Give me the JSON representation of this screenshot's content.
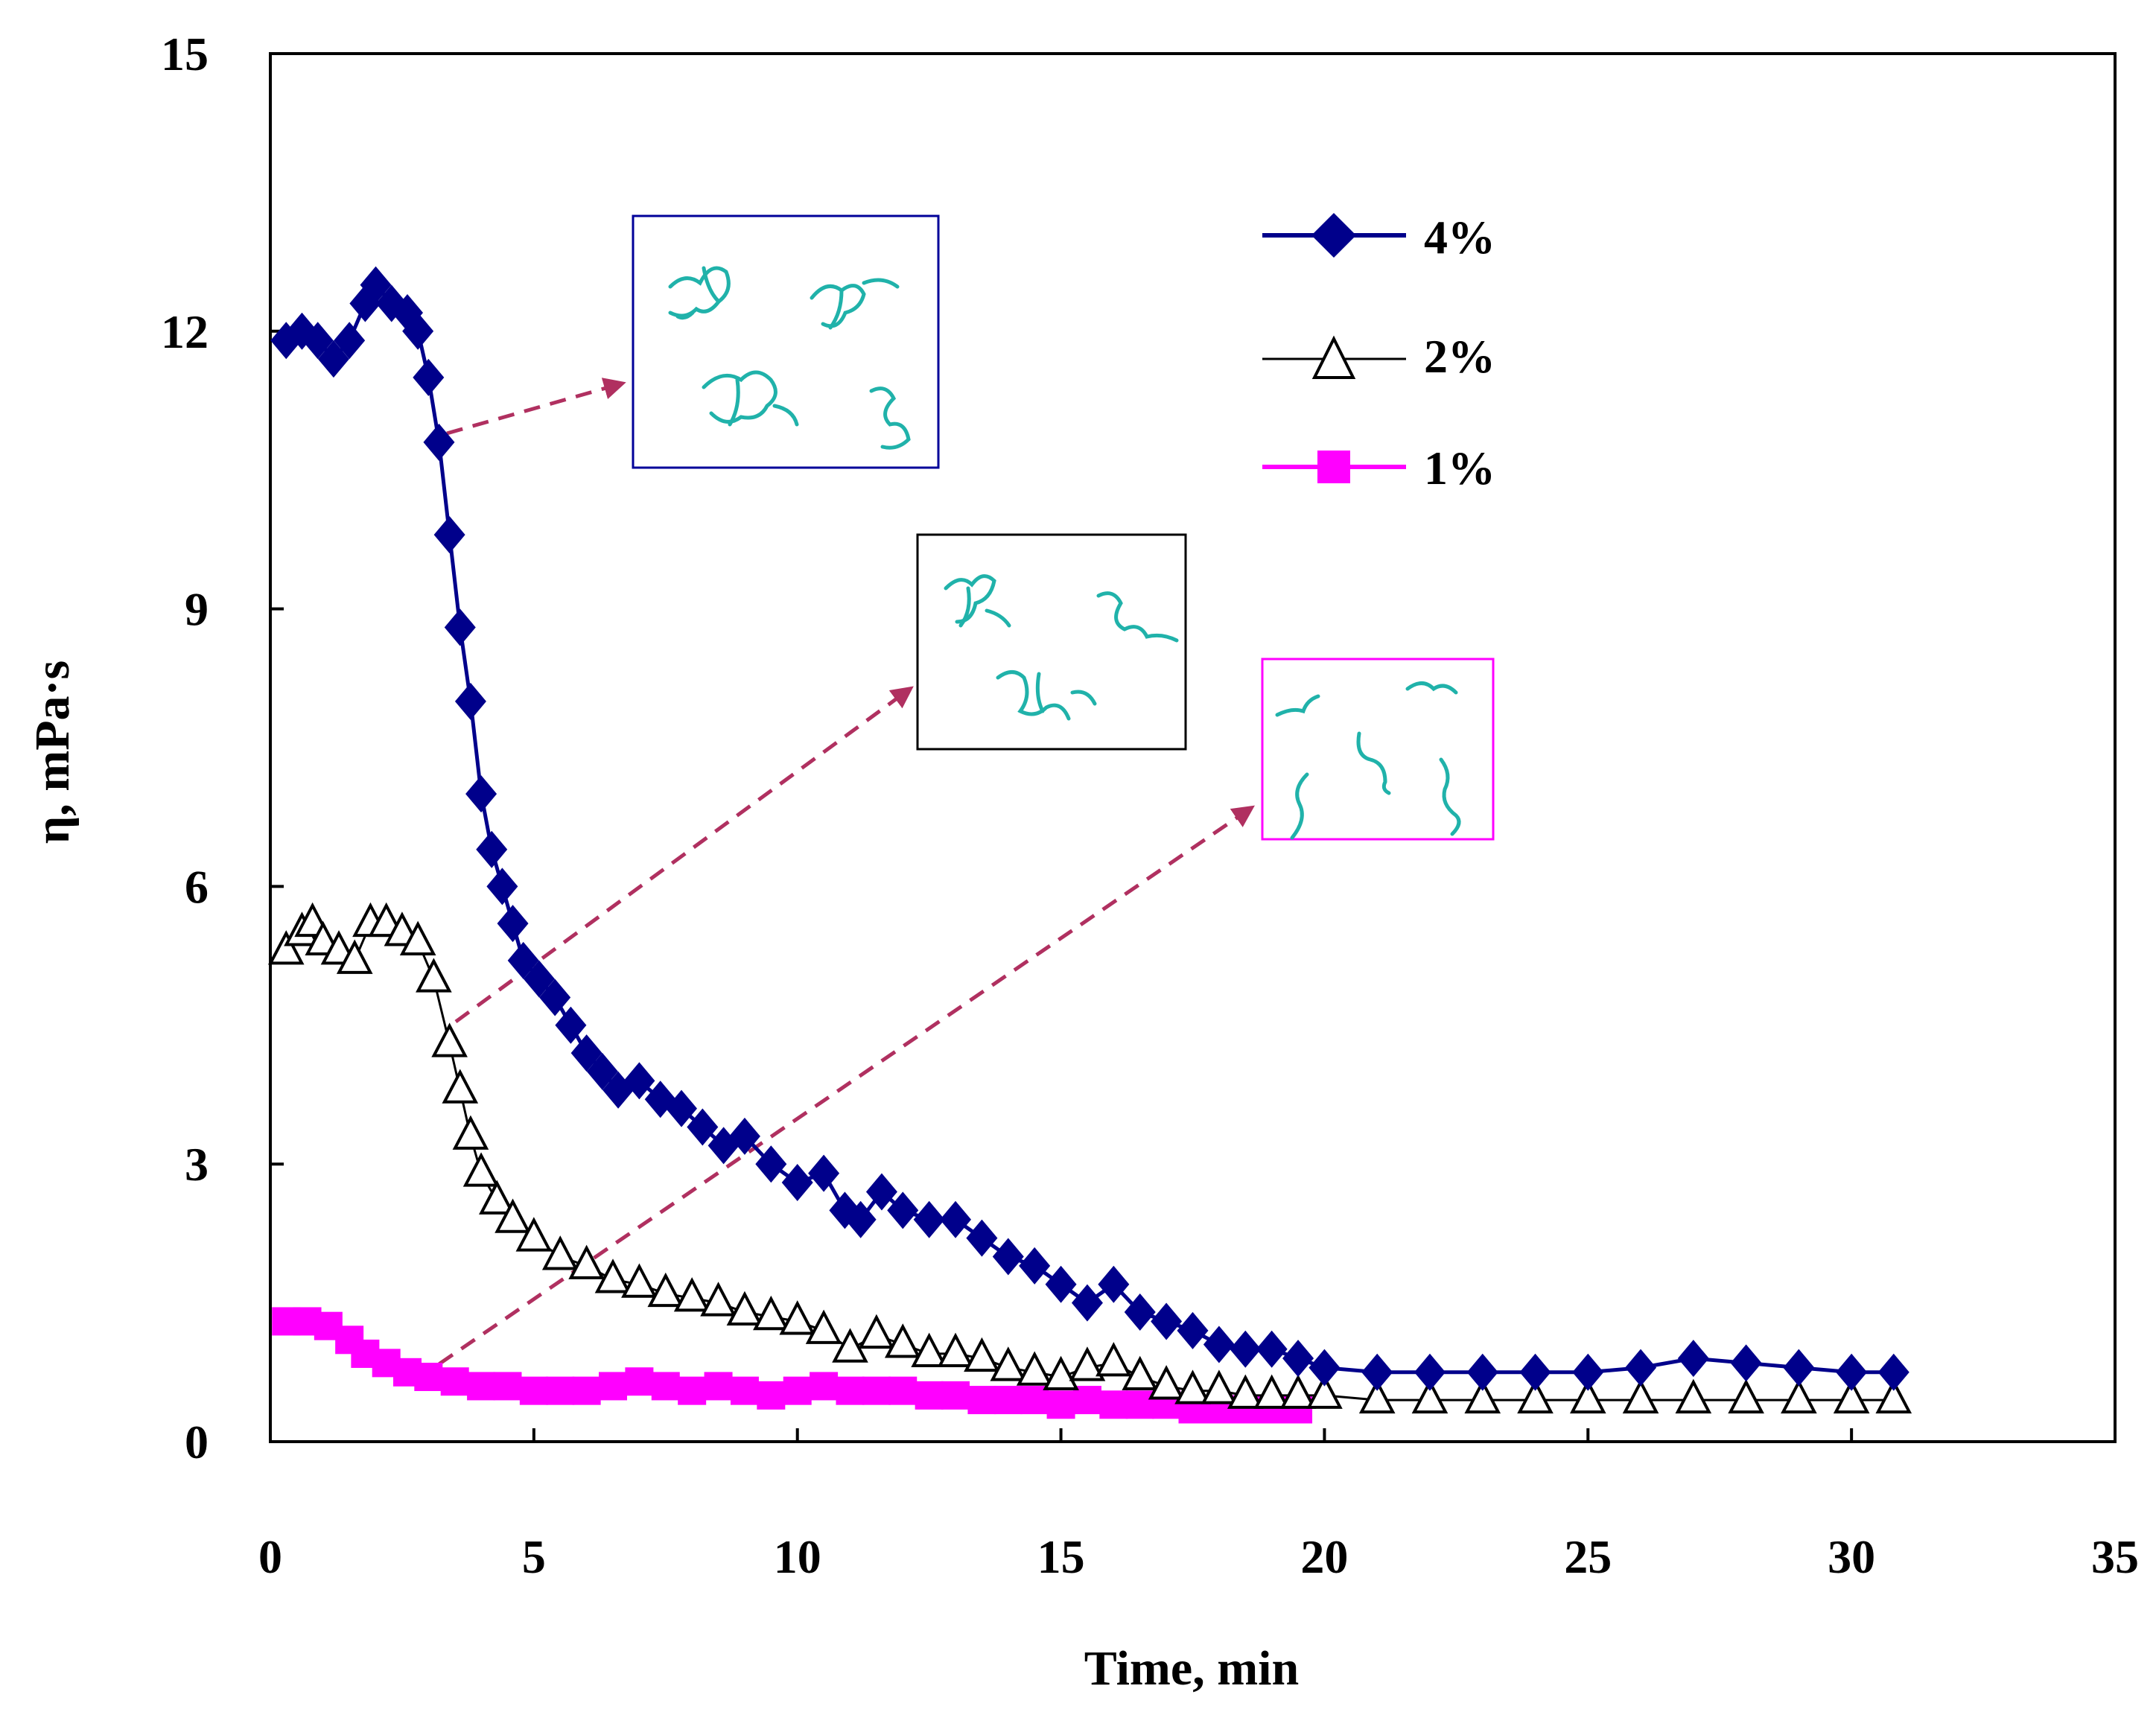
{
  "chart_data": {
    "type": "line",
    "title": "",
    "xlabel": "Time, min",
    "ylabel": "η, mPa·s",
    "xlim": [
      0,
      35
    ],
    "ylim": [
      0,
      15
    ],
    "xticks": [
      0,
      5,
      10,
      15,
      20,
      25,
      30,
      35
    ],
    "yticks": [
      0,
      3,
      6,
      9,
      12,
      15
    ],
    "grid": false,
    "legend_position": "top-right",
    "series": [
      {
        "name": "4%",
        "marker": "diamond",
        "color": "#00008B",
        "x": [
          0.3,
          0.6,
          0.9,
          1.2,
          1.5,
          1.8,
          2.0,
          2.3,
          2.6,
          2.8,
          3.0,
          3.2,
          3.4,
          3.6,
          3.8,
          4.0,
          4.2,
          4.4,
          4.6,
          4.8,
          5.1,
          5.4,
          5.7,
          6.0,
          6.3,
          6.6,
          7.0,
          7.4,
          7.8,
          8.2,
          8.6,
          9.0,
          9.5,
          10.0,
          10.5,
          10.9,
          11.2,
          11.6,
          12.0,
          12.5,
          13.0,
          13.5,
          14.0,
          14.5,
          15.0,
          15.5,
          16.0,
          16.5,
          17.0,
          17.5,
          18.0,
          18.5,
          19.0,
          19.5,
          20.0,
          21.0,
          22.0,
          23.0,
          24.0,
          25.0,
          26.0,
          27.0,
          28.0,
          29.0,
          30.0,
          30.8
        ],
        "values": [
          11.9,
          12.0,
          11.9,
          11.7,
          11.9,
          12.3,
          12.5,
          12.3,
          12.2,
          12.0,
          11.5,
          10.8,
          9.8,
          8.8,
          8.0,
          7.0,
          6.4,
          6.0,
          5.6,
          5.2,
          5.0,
          4.8,
          4.5,
          4.2,
          4.0,
          3.8,
          3.9,
          3.7,
          3.6,
          3.4,
          3.2,
          3.3,
          3.0,
          2.8,
          2.9,
          2.5,
          2.4,
          2.7,
          2.5,
          2.4,
          2.4,
          2.2,
          2.0,
          1.9,
          1.7,
          1.5,
          1.7,
          1.4,
          1.3,
          1.2,
          1.05,
          1.0,
          1.0,
          0.9,
          0.8,
          0.75,
          0.75,
          0.75,
          0.75,
          0.75,
          0.8,
          0.9,
          0.85,
          0.8,
          0.75,
          0.75
        ]
      },
      {
        "name": "2%",
        "marker": "triangle-open",
        "color": "#000000",
        "x": [
          0.3,
          0.6,
          0.8,
          1.0,
          1.3,
          1.6,
          1.9,
          2.2,
          2.5,
          2.8,
          3.1,
          3.4,
          3.6,
          3.8,
          4.0,
          4.3,
          4.6,
          5.0,
          5.5,
          6.0,
          6.5,
          7.0,
          7.5,
          8.0,
          8.5,
          9.0,
          9.5,
          10.0,
          10.5,
          11.0,
          11.5,
          12.0,
          12.5,
          13.0,
          13.5,
          14.0,
          14.5,
          15.0,
          15.5,
          16.0,
          16.5,
          17.0,
          17.5,
          18.0,
          18.5,
          19.0,
          19.5,
          20.0,
          21.0,
          22.0,
          23.0,
          24.0,
          25.0,
          26.0,
          27.0,
          28.0,
          29.0,
          30.0,
          30.8
        ],
        "values": [
          5.3,
          5.5,
          5.6,
          5.4,
          5.3,
          5.2,
          5.6,
          5.6,
          5.5,
          5.4,
          5.0,
          4.3,
          3.8,
          3.3,
          2.9,
          2.6,
          2.4,
          2.2,
          2.0,
          1.9,
          1.75,
          1.7,
          1.6,
          1.55,
          1.5,
          1.4,
          1.35,
          1.3,
          1.2,
          1.0,
          1.15,
          1.05,
          0.95,
          0.95,
          0.9,
          0.8,
          0.75,
          0.7,
          0.8,
          0.85,
          0.7,
          0.6,
          0.55,
          0.55,
          0.5,
          0.5,
          0.5,
          0.5,
          0.45,
          0.45,
          0.45,
          0.45,
          0.45,
          0.45,
          0.45,
          0.45,
          0.45,
          0.45,
          0.45
        ]
      },
      {
        "name": "1%",
        "marker": "square",
        "color": "#FF00FF",
        "x": [
          0.3,
          0.7,
          1.1,
          1.5,
          1.8,
          2.2,
          2.6,
          3.0,
          3.5,
          4.0,
          4.5,
          5.0,
          5.5,
          6.0,
          6.5,
          7.0,
          7.5,
          8.0,
          8.5,
          9.0,
          9.5,
          10.0,
          10.5,
          11.0,
          11.5,
          12.0,
          12.5,
          13.0,
          13.5,
          14.0,
          14.5,
          15.0,
          15.5,
          16.0,
          16.5,
          17.0,
          17.5,
          18.0,
          18.5,
          19.0,
          19.5
        ],
        "values": [
          1.3,
          1.3,
          1.25,
          1.1,
          0.95,
          0.85,
          0.75,
          0.7,
          0.65,
          0.6,
          0.6,
          0.55,
          0.55,
          0.55,
          0.6,
          0.65,
          0.6,
          0.55,
          0.6,
          0.55,
          0.5,
          0.55,
          0.6,
          0.55,
          0.55,
          0.55,
          0.5,
          0.5,
          0.45,
          0.45,
          0.45,
          0.4,
          0.45,
          0.4,
          0.4,
          0.4,
          0.35,
          0.35,
          0.35,
          0.35,
          0.35
        ]
      }
    ],
    "legend": [
      "4%",
      "2%",
      "1%"
    ]
  }
}
